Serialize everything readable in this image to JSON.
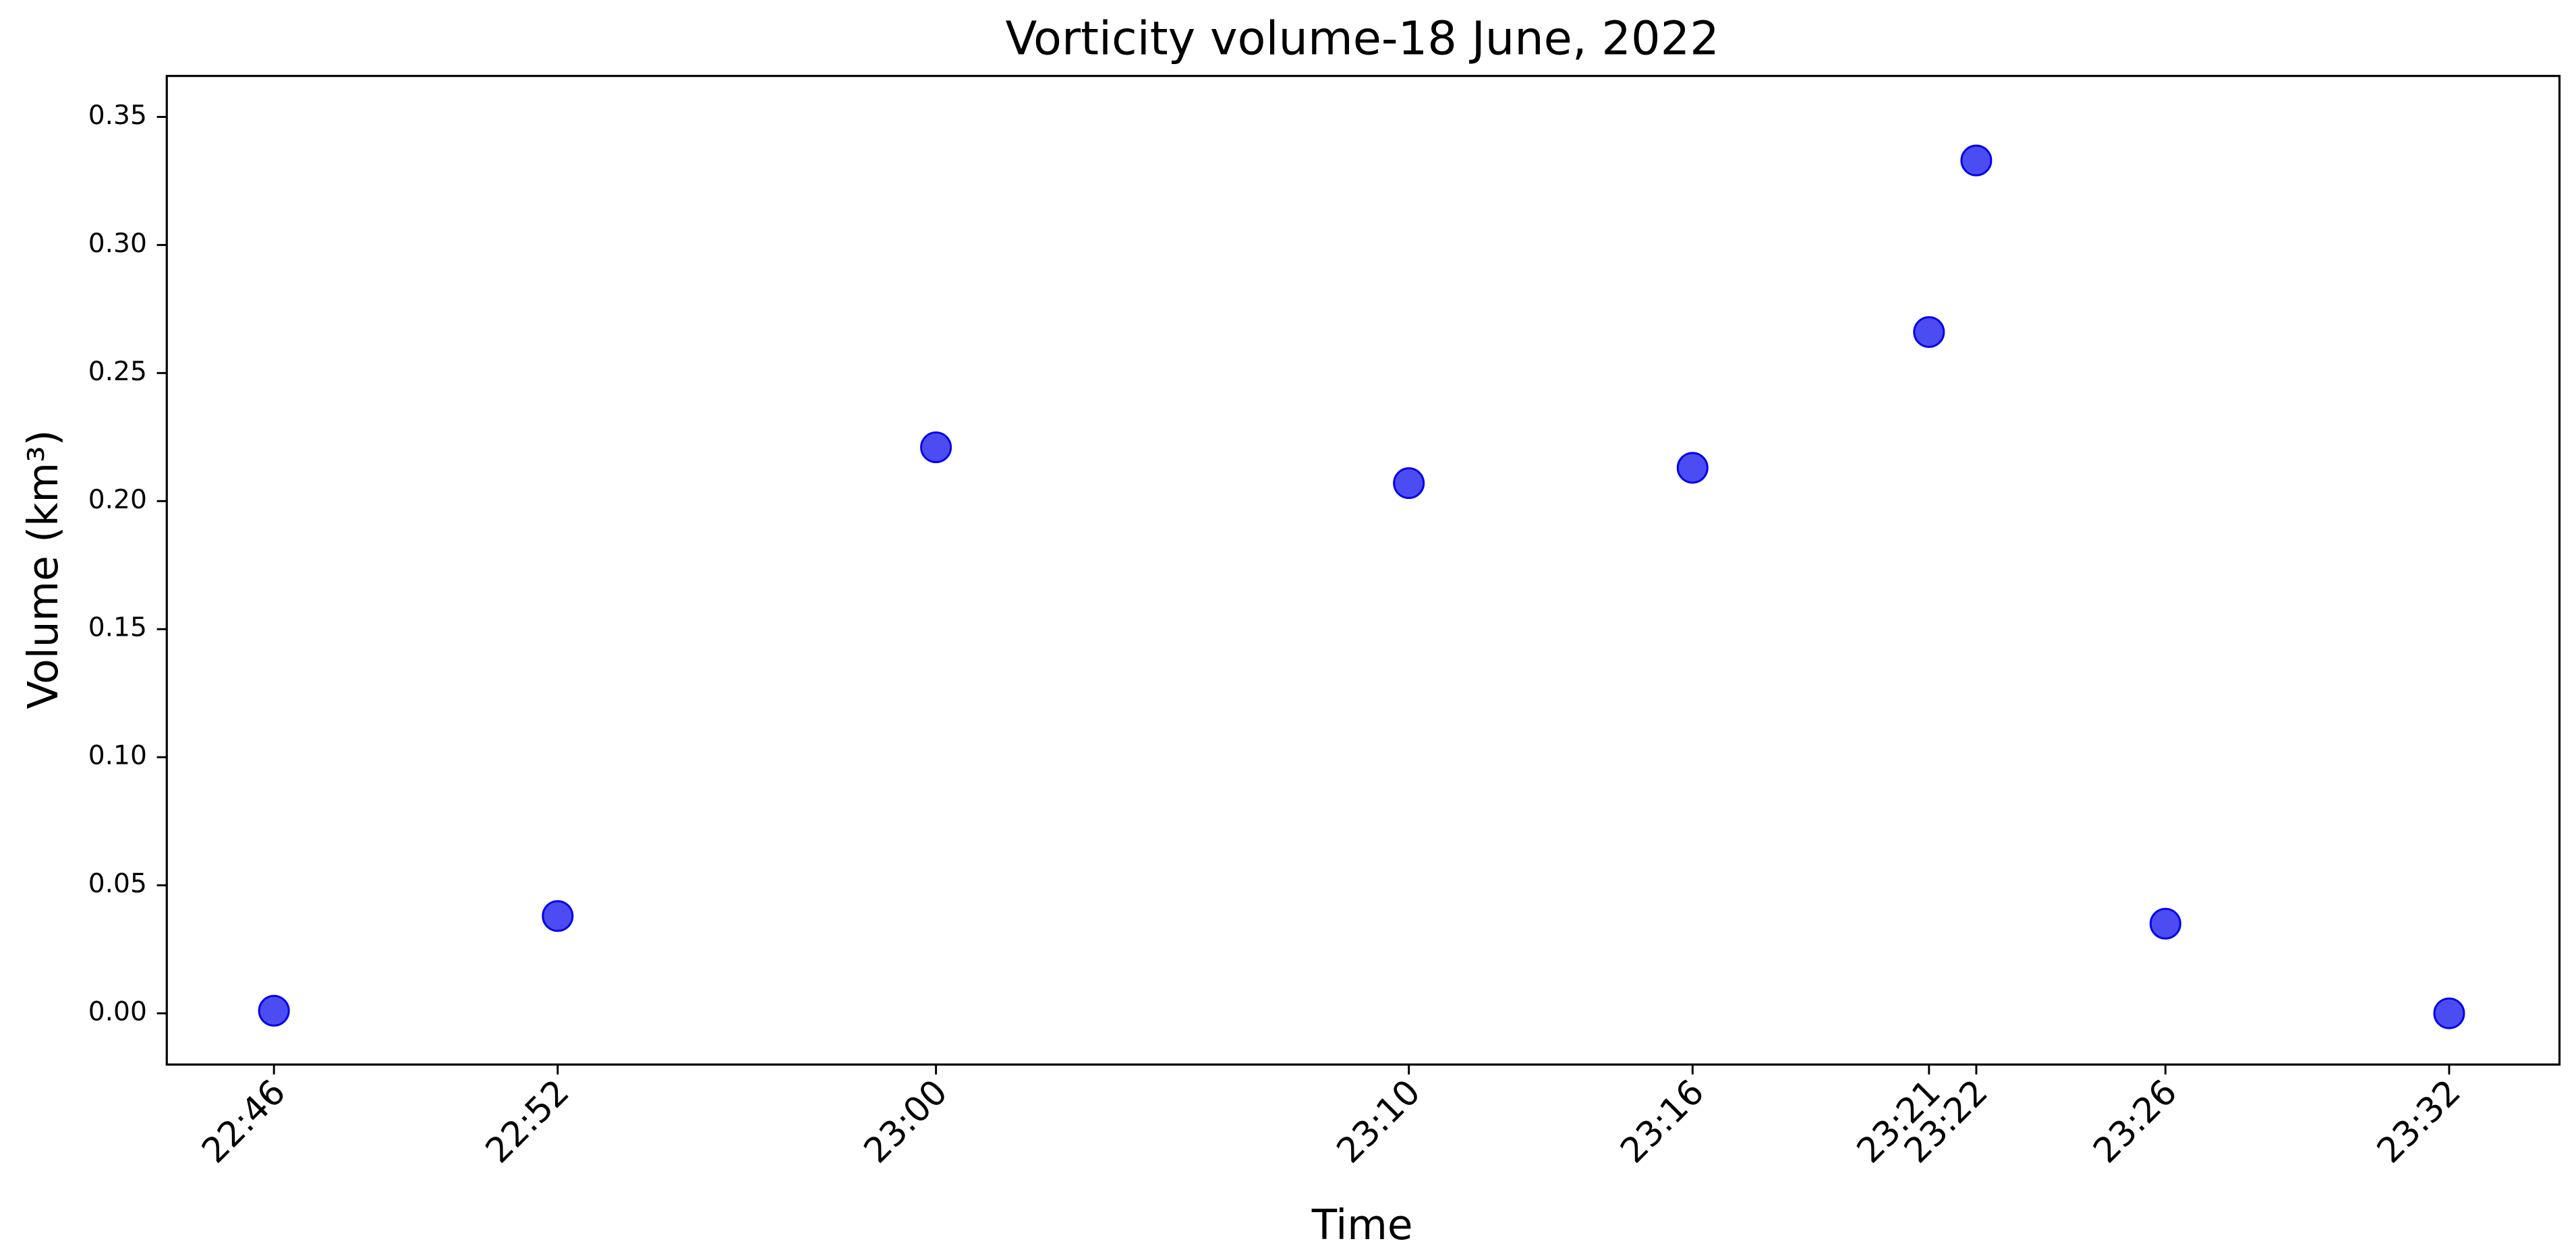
{
  "chart_data": {
    "type": "scatter",
    "title": "Vorticity volume-18 June, 2022",
    "x_label": "Time",
    "y_label": "Volume (km³)",
    "series": [
      {
        "color": "#0000ee",
        "x": [
          "22:46",
          "22:52",
          "23:00",
          "23:10",
          "23:16",
          "23:21",
          "23:22",
          "23:26",
          "23:32"
        ],
        "values": [
          0.001,
          0.038,
          0.221,
          0.207,
          0.213,
          0.266,
          0.333,
          0.035,
          0.0
        ]
      }
    ],
    "xlim": [
      "22:43:44",
      "23:34:20"
    ],
    "xticks": [
      "22:46",
      "22:52",
      "23:00",
      "23:10",
      "23:16",
      "23:21",
      "23:22",
      "23:26",
      "23:32"
    ],
    "ylim": [
      -0.02,
      0.366
    ],
    "yticks": [
      {
        "value": 0,
        "label": "0.00"
      },
      {
        "value": 0.05,
        "label": "0.05"
      },
      {
        "value": 0.1,
        "label": "0.10"
      },
      {
        "value": 0.15,
        "label": "0.15"
      },
      {
        "value": 0.2,
        "label": "0.20"
      },
      {
        "value": 0.25,
        "label": "0.25"
      },
      {
        "value": 0.3,
        "label": "0.30"
      },
      {
        "value": 0.35,
        "label": "0.35"
      }
    ],
    "grid": false
  }
}
